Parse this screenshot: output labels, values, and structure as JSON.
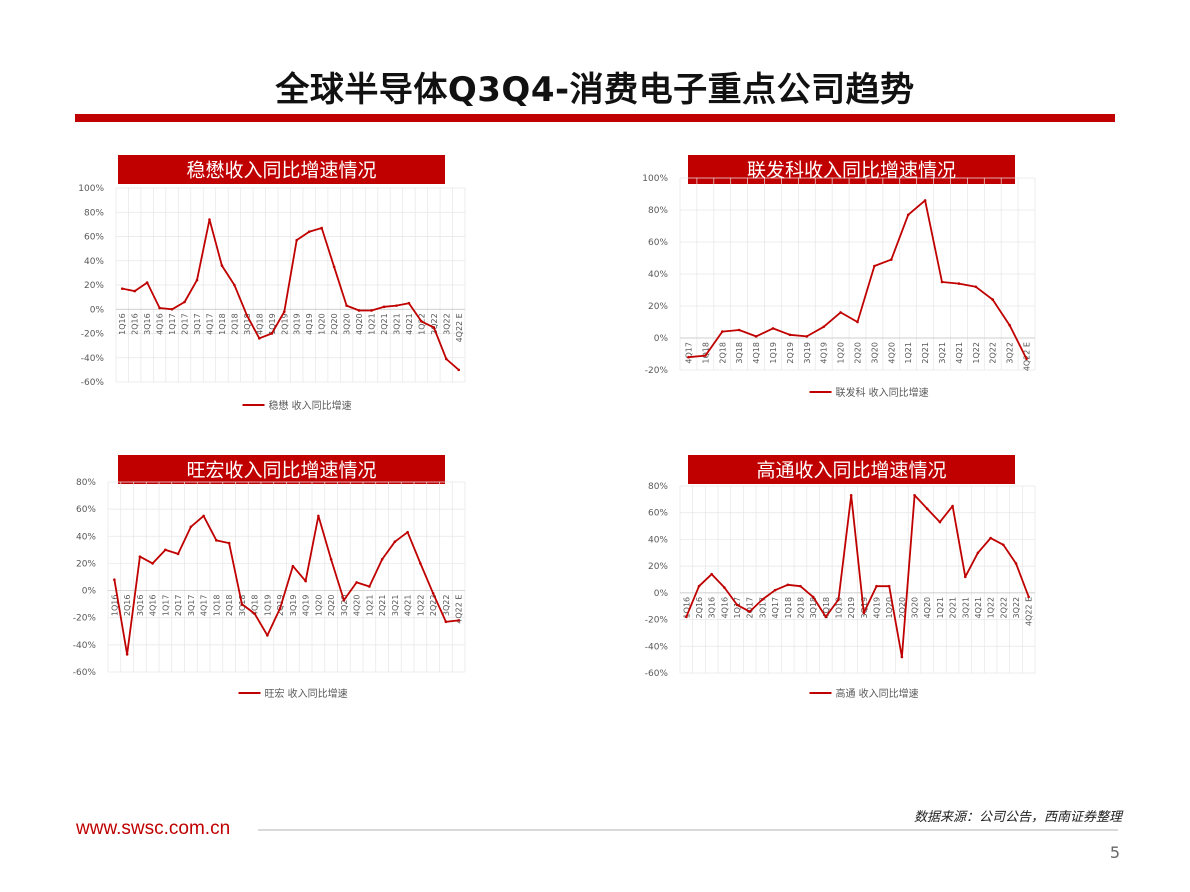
{
  "page": {
    "title": "全球半导体Q3Q4-消费电子重点公司趋势",
    "source": "数据来源：公司公告，西南证券整理",
    "website": "www.swsc.com.cn",
    "page_number": "5"
  },
  "colors": {
    "accent": "#c00000",
    "line": "#c00000",
    "grid": "#e6e6e6",
    "axis_text": "#595959"
  },
  "chart_data": [
    {
      "type": "line",
      "title": "稳懋收入同比增速情况",
      "legend": "稳懋 收入同比增速",
      "legend_position": "bottom",
      "ylim": [
        -60,
        100
      ],
      "y_ticks": [
        -60,
        -40,
        -20,
        0,
        20,
        40,
        60,
        80,
        100
      ],
      "y_format": "percent",
      "categories": [
        "1Q16",
        "2Q16",
        "3Q16",
        "4Q16",
        "1Q17",
        "2Q17",
        "3Q17",
        "4Q17",
        "1Q18",
        "2Q18",
        "3Q18",
        "4Q18",
        "1Q19",
        "2Q19",
        "3Q19",
        "4Q19",
        "1Q20",
        "2Q20",
        "3Q20",
        "4Q20",
        "1Q21",
        "2Q21",
        "3Q21",
        "4Q21",
        "1Q22",
        "2Q22",
        "3Q22",
        "4Q22 E"
      ],
      "series": [
        {
          "name": "稳懋 收入同比增速",
          "values": [
            17,
            15,
            22,
            1,
            0,
            6,
            24,
            74,
            36,
            20,
            -5,
            -24,
            -20,
            -2,
            57,
            64,
            67,
            35,
            3,
            -1,
            -1,
            2,
            3,
            5,
            -10,
            -15,
            -41,
            -50
          ]
        }
      ]
    },
    {
      "type": "line",
      "title": "联发科收入同比增速情况",
      "legend": "联发科 收入同比增速",
      "legend_position": "bottom",
      "ylim": [
        -20,
        100
      ],
      "y_ticks": [
        -20,
        0,
        20,
        40,
        60,
        80,
        100
      ],
      "y_format": "percent",
      "categories": [
        "4Q17",
        "1Q18",
        "2Q18",
        "3Q18",
        "4Q18",
        "1Q19",
        "2Q19",
        "3Q19",
        "4Q19",
        "1Q20",
        "2Q20",
        "3Q20",
        "4Q20",
        "1Q21",
        "2Q21",
        "3Q21",
        "4Q21",
        "1Q22",
        "2Q22",
        "3Q22",
        "4Q22 E"
      ],
      "series": [
        {
          "name": "联发科 收入同比增速",
          "values": [
            -12,
            -11,
            4,
            5,
            1,
            6,
            2,
            1,
            7,
            16,
            10,
            45,
            49,
            77,
            86,
            35,
            34,
            32,
            24,
            8,
            -13
          ]
        }
      ]
    },
    {
      "type": "line",
      "title": "旺宏收入同比增速情况",
      "legend": "旺宏 收入同比增速",
      "legend_position": "bottom",
      "ylim": [
        -60,
        80
      ],
      "y_ticks": [
        -60,
        -40,
        -20,
        0,
        20,
        40,
        60,
        80
      ],
      "y_format": "percent",
      "categories": [
        "1Q16",
        "2Q16",
        "3Q16",
        "4Q16",
        "1Q17",
        "2Q17",
        "3Q17",
        "4Q17",
        "1Q18",
        "2Q18",
        "3Q18",
        "4Q18",
        "1Q19",
        "2Q19",
        "3Q19",
        "4Q19",
        "1Q20",
        "2Q20",
        "3Q20",
        "4Q20",
        "1Q21",
        "2Q21",
        "3Q21",
        "4Q21",
        "1Q22",
        "2Q22",
        "3Q22",
        "4Q22 E"
      ],
      "series": [
        {
          "name": "旺宏 收入同比增速",
          "values": [
            8,
            -47,
            25,
            20,
            30,
            27,
            47,
            55,
            37,
            35,
            -10,
            -17,
            -33,
            -13,
            18,
            7,
            55,
            23,
            -7,
            6,
            3,
            23,
            36,
            43,
            20,
            -2,
            -23,
            -22
          ]
        }
      ]
    },
    {
      "type": "line",
      "title": "高通收入同比增速情况",
      "legend": "高通 收入同比增速",
      "legend_position": "bottom",
      "ylim": [
        -60,
        80
      ],
      "y_ticks": [
        -60,
        -40,
        -20,
        0,
        20,
        40,
        60,
        80
      ],
      "y_format": "percent",
      "categories": [
        "1Q16",
        "2Q16",
        "3Q16",
        "4Q16",
        "1Q17",
        "2Q17",
        "3Q17",
        "4Q17",
        "1Q18",
        "2Q18",
        "3Q18",
        "4Q18",
        "1Q19",
        "2Q19",
        "3Q19",
        "4Q19",
        "1Q20",
        "2Q20",
        "3Q20",
        "4Q20",
        "1Q21",
        "2Q21",
        "3Q21",
        "4Q21",
        "1Q22",
        "2Q22",
        "3Q22",
        "4Q22 E"
      ],
      "series": [
        {
          "name": "高通 收入同比增速",
          "values": [
            -18,
            5,
            14,
            4,
            -9,
            -14,
            -5,
            2,
            6,
            5,
            -3,
            -18,
            -5,
            73,
            -15,
            5,
            5,
            -48,
            73,
            63,
            53,
            65,
            12,
            30,
            41,
            36,
            22,
            -3
          ]
        }
      ]
    }
  ]
}
